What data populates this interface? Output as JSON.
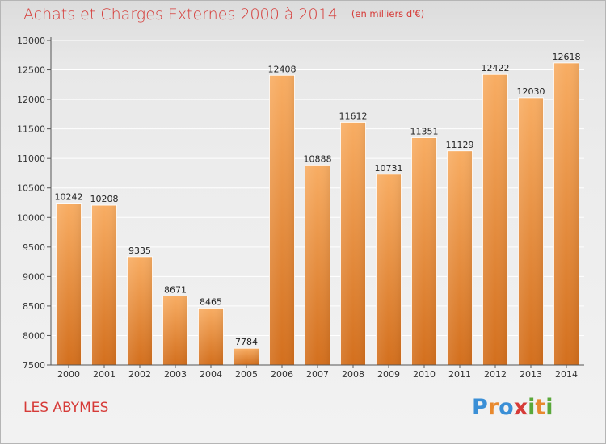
{
  "title": {
    "main": "Achats et Charges Externes 2000 à 2014",
    "unit": "(en milliers d'€)"
  },
  "town": "LES ABYMES",
  "brand": {
    "letters": [
      {
        "char": "P",
        "color": "#3a8fd6"
      },
      {
        "char": "r",
        "color": "#e8892e"
      },
      {
        "char": "o",
        "color": "#3a8fd6"
      },
      {
        "char": "x",
        "color": "#d63b38"
      },
      {
        "char": "i",
        "color": "#5aa83a"
      },
      {
        "char": "t",
        "color": "#e8892e"
      },
      {
        "char": "i",
        "color": "#5aa83a"
      }
    ]
  },
  "colors": {
    "bar_light": "#f6a85a",
    "bar_dark": "#d9701d",
    "title": "#d63b38"
  },
  "chart_data": {
    "type": "bar",
    "categories": [
      "2000",
      "2001",
      "2002",
      "2003",
      "2004",
      "2005",
      "2006",
      "2007",
      "2008",
      "2009",
      "2010",
      "2011",
      "2012",
      "2013",
      "2014"
    ],
    "values": [
      10242,
      10208,
      9335,
      8671,
      8465,
      7784,
      12408,
      10888,
      11612,
      10731,
      11351,
      11129,
      12422,
      12030,
      12618
    ],
    "ylim": [
      7500,
      13000
    ],
    "yticks": [
      7500,
      8000,
      8500,
      9000,
      9500,
      10000,
      10500,
      11000,
      11500,
      12000,
      12500,
      13000
    ],
    "grid": true,
    "legend": "none"
  }
}
